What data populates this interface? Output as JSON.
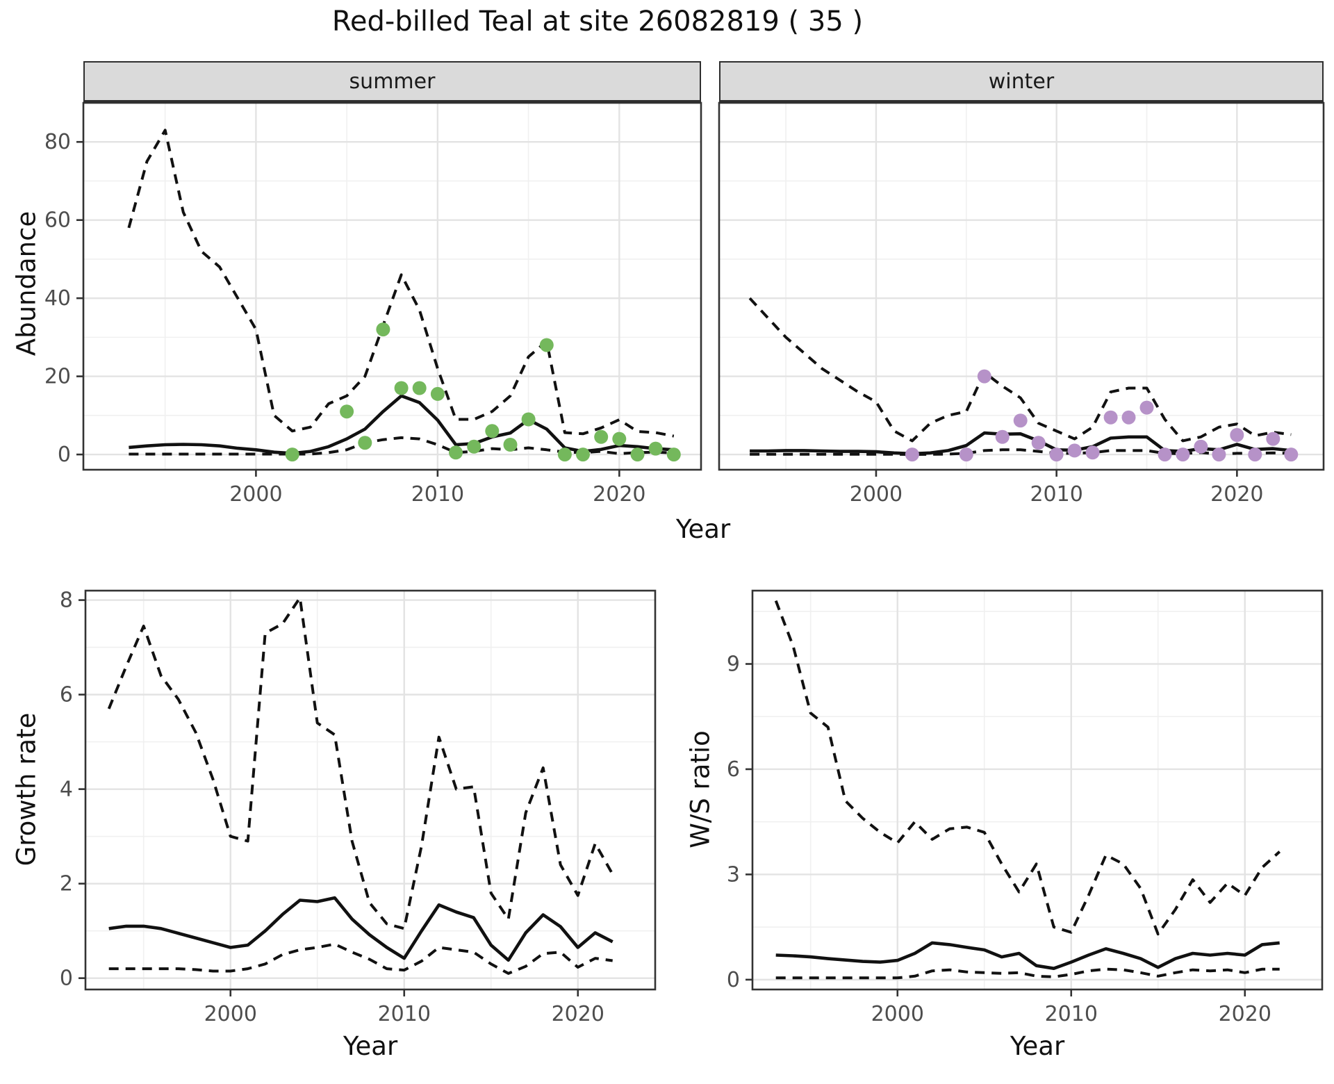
{
  "title": "Red-billed Teal at site 26082819 ( 35 )",
  "colors": {
    "line": "#111111",
    "summer_points": "#74b85c",
    "winter_points": "#b692c8",
    "strip_bg": "#dadada",
    "grid_major": "#e3e3e3",
    "grid_minor": "#f0f0f0",
    "tick_text": "#4d4d4d"
  },
  "chart_data": [
    {
      "id": "summer_abundance",
      "type": "line",
      "facet_label": "summer",
      "xlabel": "Year",
      "ylabel": "Abundance",
      "xlim": [
        1990.5,
        2024.5
      ],
      "ylim": [
        -3.9,
        90
      ],
      "xticks": [
        2000,
        2010,
        2020
      ],
      "yticks": [
        0,
        20,
        40,
        60,
        80
      ],
      "grid": true,
      "legend": "none",
      "x": [
        1993,
        1994,
        1995,
        1996,
        1997,
        1998,
        1999,
        2000,
        2001,
        2002,
        2003,
        2004,
        2005,
        2006,
        2007,
        2008,
        2009,
        2010,
        2011,
        2012,
        2013,
        2014,
        2015,
        2016,
        2017,
        2018,
        2019,
        2020,
        2021,
        2022,
        2023
      ],
      "series": [
        {
          "name": "upper_95ci",
          "style": "dashed",
          "values": [
            58,
            75,
            83,
            62,
            52,
            48,
            40,
            32,
            10,
            6,
            7,
            13,
            15,
            20,
            33,
            46,
            37,
            22,
            9,
            9,
            11,
            15,
            25,
            29,
            5.6,
            5.3,
            6.8,
            8.9,
            5.9,
            5.6,
            4.7
          ]
        },
        {
          "name": "mean",
          "style": "solid",
          "values": [
            1.8,
            2.2,
            2.5,
            2.6,
            2.5,
            2.2,
            1.6,
            1.2,
            0.6,
            0.3,
            0.8,
            2,
            4,
            6.5,
            11,
            15,
            13.3,
            8.8,
            2.5,
            2.8,
            4.5,
            5.5,
            8.9,
            6.5,
            1.7,
            0.8,
            1.3,
            2.3,
            2,
            1.5,
            1.2
          ]
        },
        {
          "name": "lower_95ci",
          "style": "dashed",
          "values": [
            0.1,
            0.1,
            0.1,
            0.1,
            0.1,
            0.1,
            0.1,
            0.1,
            0.1,
            0.1,
            0.1,
            0.5,
            1.2,
            3,
            3.8,
            4.3,
            4,
            2.5,
            0.5,
            0.8,
            1.5,
            1.2,
            1.7,
            1.2,
            0.6,
            0.5,
            0.8,
            0.2,
            0.5,
            0.6,
            0.4
          ]
        }
      ],
      "points": {
        "name": "observed_counts",
        "color": "#74b85c",
        "x": [
          2002,
          2005,
          2006,
          2007,
          2008,
          2009,
          2010,
          2011,
          2012,
          2013,
          2014,
          2015,
          2016,
          2017,
          2018,
          2019,
          2020,
          2021,
          2022,
          2023
        ],
        "y": [
          0,
          11,
          3,
          32,
          17,
          17,
          15.5,
          0.5,
          2,
          6,
          2.5,
          9,
          28,
          0,
          0,
          4.5,
          4,
          0,
          1.5,
          0
        ]
      }
    },
    {
      "id": "winter_abundance",
      "type": "line",
      "facet_label": "winter",
      "xlabel": "Year",
      "ylabel": "Abundance",
      "xlim": [
        1991.3,
        2024.8
      ],
      "ylim": [
        -3.9,
        90
      ],
      "xticks": [
        2000,
        2010,
        2020
      ],
      "yticks": [
        0,
        20,
        40,
        60,
        80
      ],
      "grid": true,
      "legend": "none",
      "x": [
        1993,
        1994,
        1995,
        1996,
        1997,
        1998,
        1999,
        2000,
        2001,
        2002,
        2003,
        2004,
        2005,
        2006,
        2007,
        2008,
        2009,
        2010,
        2011,
        2012,
        2013,
        2014,
        2015,
        2016,
        2017,
        2018,
        2019,
        2020,
        2021,
        2022,
        2023
      ],
      "series": [
        {
          "name": "upper_95ci",
          "style": "dashed",
          "values": [
            40,
            35,
            30,
            26,
            22,
            19,
            16,
            13.5,
            6,
            3.5,
            8,
            10,
            11,
            21,
            17.5,
            14.5,
            8,
            6,
            4,
            7,
            16,
            17,
            17,
            9,
            3.5,
            4.5,
            7,
            7.8,
            4.8,
            5.7,
            5.1
          ]
        },
        {
          "name": "mean",
          "style": "solid",
          "values": [
            0.9,
            0.9,
            1,
            1,
            0.9,
            0.8,
            0.8,
            0.7,
            0.4,
            0.2,
            0.4,
            1,
            2.3,
            5.5,
            5.2,
            5.3,
            3.5,
            1.2,
            1.1,
            2,
            4.2,
            4.5,
            4.5,
            1,
            0.8,
            1.5,
            1.2,
            2.6,
            1.3,
            1.5,
            1
          ]
        },
        {
          "name": "lower_95ci",
          "style": "dashed",
          "values": [
            0.05,
            0.05,
            0.05,
            0.05,
            0.05,
            0.05,
            0.05,
            0.05,
            0.05,
            0.02,
            0.05,
            0.1,
            0.3,
            1,
            1.2,
            1.2,
            0.8,
            0.3,
            0.3,
            0.5,
            1,
            1,
            1,
            0.3,
            0.2,
            0.5,
            0.1,
            0.3,
            0.3,
            0.4,
            0.3
          ]
        }
      ],
      "points": {
        "name": "observed_counts",
        "color": "#b692c8",
        "x": [
          2002,
          2005,
          2006,
          2007,
          2008,
          2009,
          2010,
          2011,
          2012,
          2013,
          2014,
          2015,
          2016,
          2017,
          2018,
          2019,
          2020,
          2021,
          2022,
          2023
        ],
        "y": [
          0,
          0,
          20,
          4.5,
          8.7,
          3,
          0,
          1,
          0.5,
          9.5,
          9.5,
          12,
          0,
          0,
          2,
          0,
          5,
          0,
          4,
          0
        ]
      }
    },
    {
      "id": "growth_rate",
      "type": "line",
      "facet_label": "",
      "xlabel": "Year",
      "ylabel": "Growth rate",
      "xlim": [
        1991.65,
        2024.45
      ],
      "ylim": [
        -0.24,
        8.2
      ],
      "xticks": [
        2000,
        2010,
        2020
      ],
      "yticks": [
        0,
        2,
        4,
        6,
        8
      ],
      "grid": true,
      "legend": "none",
      "x": [
        1993,
        1994,
        1995,
        1996,
        1997,
        1998,
        1999,
        2000,
        2001,
        2002,
        2003,
        2004,
        2005,
        2006,
        2007,
        2008,
        2009,
        2010,
        2011,
        2012,
        2013,
        2014,
        2015,
        2016,
        2017,
        2018,
        2019,
        2020,
        2021,
        2022
      ],
      "series": [
        {
          "name": "upper_95ci",
          "style": "dashed",
          "values": [
            5.7,
            6.6,
            7.45,
            6.4,
            5.9,
            5.2,
            4.2,
            3.0,
            2.9,
            7.3,
            7.5,
            8.05,
            5.4,
            5.15,
            2.9,
            1.6,
            1.15,
            1.05,
            2.8,
            5.1,
            4.0,
            4.05,
            1.8,
            1.25,
            3.5,
            4.45,
            2.4,
            1.75,
            2.85,
            2.2
          ]
        },
        {
          "name": "mean",
          "style": "solid",
          "values": [
            1.05,
            1.1,
            1.1,
            1.05,
            0.95,
            0.85,
            0.75,
            0.65,
            0.7,
            1.0,
            1.35,
            1.65,
            1.62,
            1.7,
            1.25,
            0.92,
            0.65,
            0.42,
            1.0,
            1.55,
            1.4,
            1.28,
            0.7,
            0.38,
            0.96,
            1.34,
            1.09,
            0.65,
            0.96,
            0.77
          ]
        },
        {
          "name": "lower_95ci",
          "style": "dashed",
          "values": [
            0.2,
            0.2,
            0.2,
            0.2,
            0.2,
            0.18,
            0.15,
            0.15,
            0.2,
            0.3,
            0.5,
            0.6,
            0.65,
            0.72,
            0.55,
            0.4,
            0.2,
            0.17,
            0.36,
            0.65,
            0.6,
            0.55,
            0.3,
            0.1,
            0.25,
            0.52,
            0.55,
            0.23,
            0.42,
            0.37
          ]
        }
      ],
      "points": null
    },
    {
      "id": "ws_ratio",
      "type": "line",
      "facet_label": "",
      "xlabel": "Year",
      "ylabel": "W/S ratio",
      "xlim": [
        1991.65,
        2024.45
      ],
      "ylim": [
        -0.28,
        11.09
      ],
      "xticks": [
        2000,
        2010,
        2020
      ],
      "yticks": [
        0,
        3,
        6,
        9
      ],
      "grid": true,
      "legend": "none",
      "x": [
        1993,
        1994,
        1995,
        1996,
        1997,
        1998,
        1999,
        2000,
        2001,
        2002,
        2003,
        2004,
        2005,
        2006,
        2007,
        2008,
        2009,
        2010,
        2011,
        2012,
        2013,
        2014,
        2015,
        2016,
        2017,
        2018,
        2019,
        2020,
        2021,
        2022
      ],
      "series": [
        {
          "name": "upper_95ci",
          "style": "dashed",
          "values": [
            10.8,
            9.5,
            7.6,
            7.2,
            5.1,
            4.6,
            4.2,
            3.9,
            4.5,
            4.0,
            4.3,
            4.35,
            4.2,
            3.3,
            2.5,
            3.3,
            1.5,
            1.35,
            2.4,
            3.55,
            3.3,
            2.6,
            1.3,
            2.0,
            2.85,
            2.2,
            2.75,
            2.4,
            3.2,
            3.65
          ]
        },
        {
          "name": "mean",
          "style": "solid",
          "values": [
            0.7,
            0.68,
            0.65,
            0.6,
            0.56,
            0.52,
            0.5,
            0.55,
            0.75,
            1.05,
            1.0,
            0.92,
            0.85,
            0.65,
            0.75,
            0.4,
            0.32,
            0.5,
            0.7,
            0.88,
            0.75,
            0.6,
            0.35,
            0.6,
            0.75,
            0.7,
            0.75,
            0.7,
            1.0,
            1.05
          ]
        },
        {
          "name": "lower_95ci",
          "style": "dashed",
          "values": [
            0.05,
            0.05,
            0.05,
            0.05,
            0.05,
            0.05,
            0.05,
            0.05,
            0.1,
            0.25,
            0.28,
            0.22,
            0.2,
            0.18,
            0.2,
            0.1,
            0.08,
            0.15,
            0.25,
            0.3,
            0.28,
            0.2,
            0.1,
            0.2,
            0.28,
            0.25,
            0.28,
            0.2,
            0.3,
            0.3
          ]
        }
      ],
      "points": null
    }
  ]
}
